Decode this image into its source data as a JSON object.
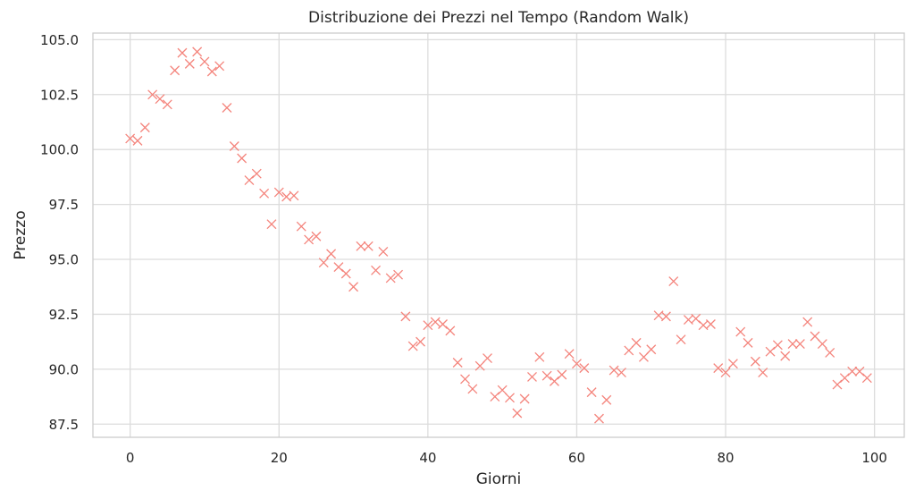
{
  "chart_data": {
    "type": "scatter",
    "title": "Distribuzione dei Prezzi nel Tempo (Random Walk)",
    "xlabel": "Giorni",
    "ylabel": "Prezzo",
    "xlim": [
      -5,
      104
    ],
    "ylim": [
      86.9,
      105.3
    ],
    "xticks": [
      0,
      20,
      40,
      60,
      80,
      100
    ],
    "xtick_labels": [
      "0",
      "20",
      "40",
      "60",
      "80",
      "100"
    ],
    "yticks": [
      87.5,
      90.0,
      92.5,
      95.0,
      97.5,
      100.0,
      102.5,
      105.0
    ],
    "ytick_labels": [
      "87.5",
      "90.0",
      "92.5",
      "95.0",
      "97.5",
      "100.0",
      "102.5",
      "105.0"
    ],
    "grid": true,
    "marker": "x",
    "color": "#f4847c",
    "x": [
      0,
      1,
      2,
      3,
      4,
      5,
      6,
      7,
      8,
      9,
      10,
      11,
      12,
      13,
      14,
      15,
      16,
      17,
      18,
      19,
      20,
      21,
      22,
      23,
      24,
      25,
      26,
      27,
      28,
      29,
      30,
      31,
      32,
      33,
      34,
      35,
      36,
      37,
      38,
      39,
      40,
      41,
      42,
      43,
      44,
      45,
      46,
      47,
      48,
      49,
      50,
      51,
      52,
      53,
      54,
      55,
      56,
      57,
      58,
      59,
      60,
      61,
      62,
      63,
      64,
      65,
      66,
      67,
      68,
      69,
      70,
      71,
      72,
      73,
      74,
      75,
      76,
      77,
      78,
      79,
      80,
      81,
      82,
      83,
      84,
      85,
      86,
      87,
      88,
      89,
      90,
      91,
      92,
      93,
      94,
      95,
      96,
      97,
      98,
      99
    ],
    "y": [
      100.5,
      100.4,
      101.0,
      102.5,
      102.3,
      102.05,
      103.6,
      104.4,
      103.9,
      104.45,
      104.0,
      103.55,
      103.8,
      101.9,
      100.15,
      99.6,
      98.6,
      98.9,
      98.0,
      96.6,
      98.05,
      97.85,
      97.9,
      96.5,
      95.9,
      96.05,
      94.85,
      95.25,
      94.65,
      94.35,
      93.75,
      95.6,
      95.6,
      94.5,
      95.35,
      94.15,
      94.3,
      92.4,
      91.05,
      91.25,
      92.0,
      92.15,
      92.05,
      91.75,
      90.3,
      89.55,
      89.1,
      90.15,
      90.5,
      88.75,
      89.05,
      88.7,
      88.0,
      88.65,
      89.65,
      90.55,
      89.7,
      89.45,
      89.75,
      90.7,
      90.25,
      90.05,
      88.95,
      87.75,
      88.6,
      89.95,
      89.85,
      90.85,
      91.2,
      90.55,
      90.9,
      92.45,
      92.4,
      94.0,
      91.35,
      92.25,
      92.3,
      92.0,
      92.05,
      90.05,
      89.85,
      90.25,
      91.7,
      91.2,
      90.35,
      89.85,
      90.8,
      91.1,
      90.6,
      91.15,
      91.15,
      92.15,
      91.5,
      91.15,
      90.75,
      89.3,
      89.6,
      89.9,
      89.9,
      89.6
    ]
  }
}
